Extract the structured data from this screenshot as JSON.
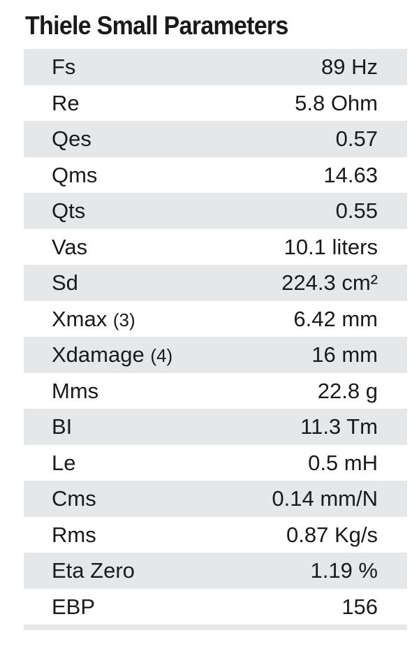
{
  "title": "Thiele Small Parameters",
  "rows": [
    {
      "param": "Fs",
      "note": "",
      "value": "89 Hz"
    },
    {
      "param": "Re",
      "note": "",
      "value": "5.8 Ohm"
    },
    {
      "param": "Qes",
      "note": "",
      "value": "0.57"
    },
    {
      "param": "Qms",
      "note": "",
      "value": "14.63"
    },
    {
      "param": "Qts",
      "note": "",
      "value": "0.55"
    },
    {
      "param": "Vas",
      "note": "",
      "value": "10.1 liters"
    },
    {
      "param": "Sd",
      "note": "",
      "value": "224.3 cm²"
    },
    {
      "param": "Xmax",
      "note": "(3)",
      "value": "6.42 mm"
    },
    {
      "param": "Xdamage",
      "note": "(4)",
      "value": "16 mm"
    },
    {
      "param": "Mms",
      "note": "",
      "value": "22.8 g"
    },
    {
      "param": "BI",
      "note": "",
      "value": "11.3 Tm"
    },
    {
      "param": "Le",
      "note": "",
      "value": "0.5 mH"
    },
    {
      "param": "Cms",
      "note": "",
      "value": "0.14 mm/N"
    },
    {
      "param": "Rms",
      "note": "",
      "value": "0.87 Kg/s"
    },
    {
      "param": "Eta Zero",
      "note": "",
      "value": "1.19 %"
    },
    {
      "param": "EBP",
      "note": "",
      "value": "156"
    }
  ]
}
